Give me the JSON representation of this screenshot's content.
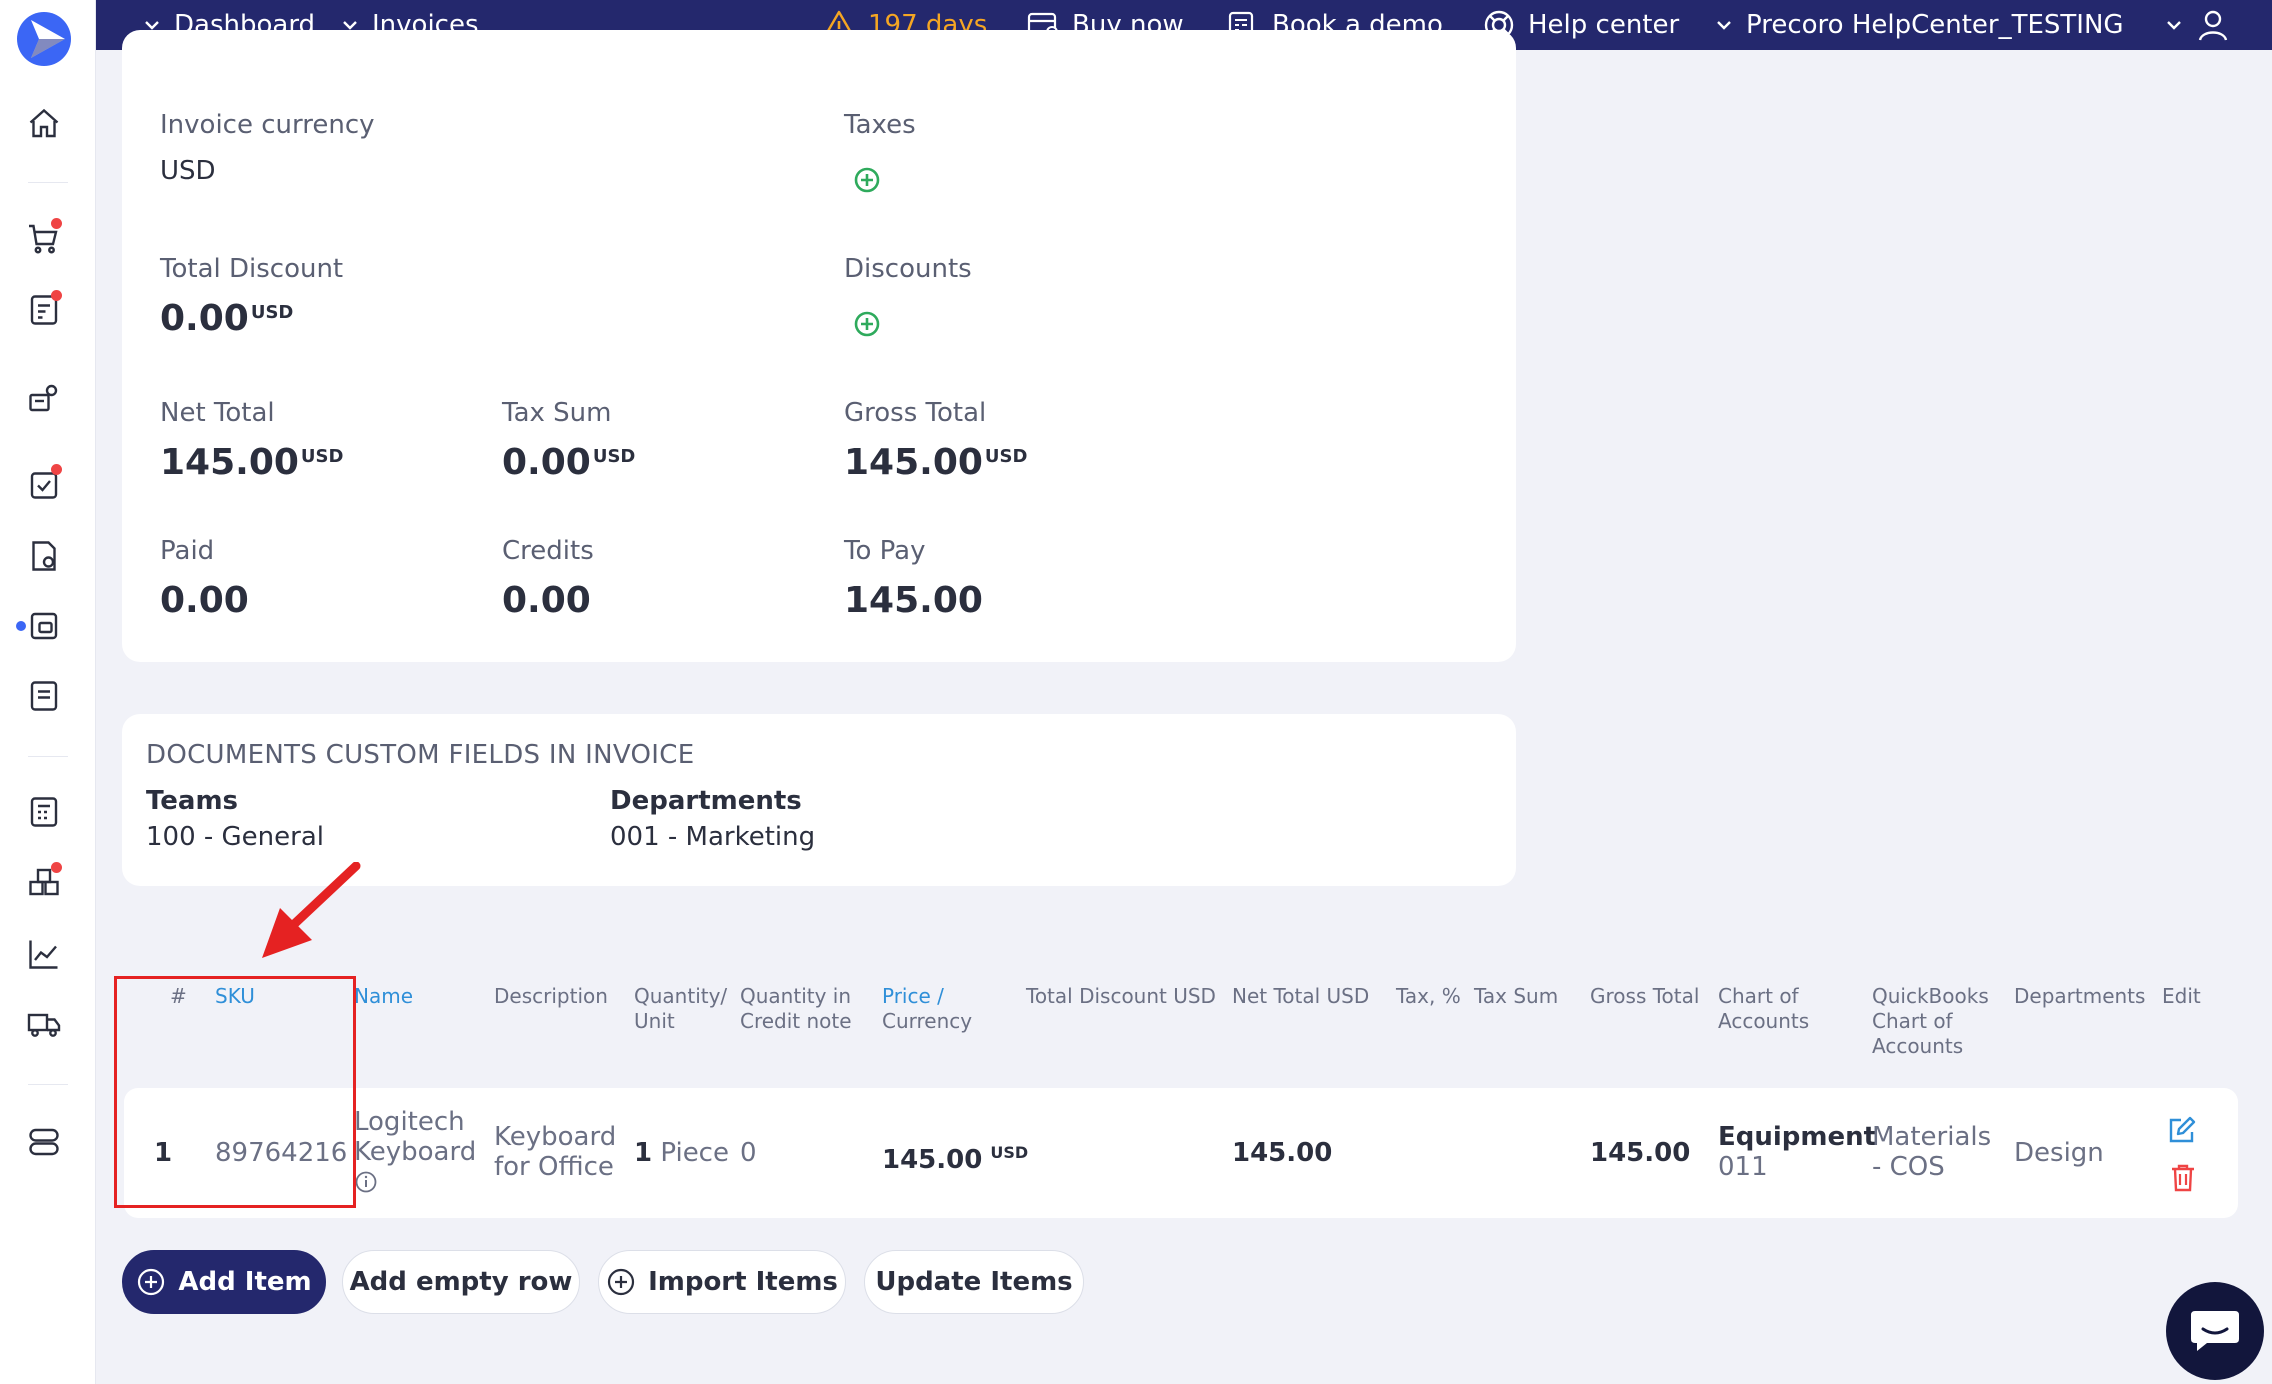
{
  "topbar": {
    "dashboard": "Dashboard",
    "invoices": "Invoices",
    "trial_days": "197 days",
    "buy_now": "Buy now",
    "book_demo": "Book a demo",
    "help_center": "Help center",
    "company": "Precoro HelpCenter_TESTING"
  },
  "summary": {
    "invoice_currency_label": "Invoice currency",
    "invoice_currency_value": "USD",
    "taxes_label": "Taxes",
    "total_discount_label": "Total Discount",
    "total_discount_value": "0.00",
    "discounts_label": "Discounts",
    "net_total_label": "Net Total",
    "net_total_value": "145.00",
    "tax_sum_label": "Tax Sum",
    "tax_sum_value": "0.00",
    "gross_total_label": "Gross Total",
    "gross_total_value": "145.00",
    "paid_label": "Paid",
    "paid_value": "0.00",
    "credits_label": "Credits",
    "credits_value": "0.00",
    "to_pay_label": "To Pay",
    "to_pay_value": "145.00",
    "currency_suffix": "USD"
  },
  "custom_fields": {
    "title": "DOCUMENTS CUSTOM FIELDS IN INVOICE",
    "teams_label": "Teams",
    "teams_value": "100 - General",
    "departments_label": "Departments",
    "departments_value": "001 - Marketing"
  },
  "table": {
    "headers": {
      "num": "#",
      "sku": "SKU",
      "name": "Name",
      "description": "Description",
      "quantity_unit_1": "Quantity/",
      "quantity_unit_2": "Unit",
      "qty_credit_1": "Quantity in",
      "qty_credit_2": "Credit note",
      "price_1": "Price /",
      "price_2": "Currency",
      "total_discount": "Total Discount USD",
      "net_total": "Net Total USD",
      "tax": "Tax, %",
      "tax_sum": "Tax Sum",
      "gross_total": "Gross Total",
      "chart_1": "Chart of",
      "chart_2": "Accounts",
      "qb_1": "QuickBooks",
      "qb_2": "Chart of",
      "qb_3": "Accounts",
      "departments": "Departments",
      "edit": "Edit"
    },
    "row": {
      "num": "1",
      "sku": "89764216",
      "name_1": "Logitech",
      "name_2": "Keyboard",
      "description_1": "Keyboard",
      "description_2": "for Office",
      "quantity": "1",
      "unit": "Piece",
      "qty_credit": "0",
      "price": "145.00",
      "price_currency": "USD",
      "net_total": "145.00",
      "gross_total": "145.00",
      "chart_name": "Equipment",
      "chart_code": "011",
      "qb_1": "Materials",
      "qb_2": "- COS",
      "department": "Design"
    }
  },
  "buttons": {
    "add_item": "Add Item",
    "add_empty_row": "Add empty row",
    "import_items": "Import Items",
    "update_items": "Update Items"
  },
  "colors": {
    "topbar": "#24286d",
    "accent": "#3b66f5",
    "link": "#2f8fd8",
    "warning": "#f5a623",
    "success": "#2eaa5c",
    "danger": "#ef4444",
    "annotation": "#e52222"
  }
}
